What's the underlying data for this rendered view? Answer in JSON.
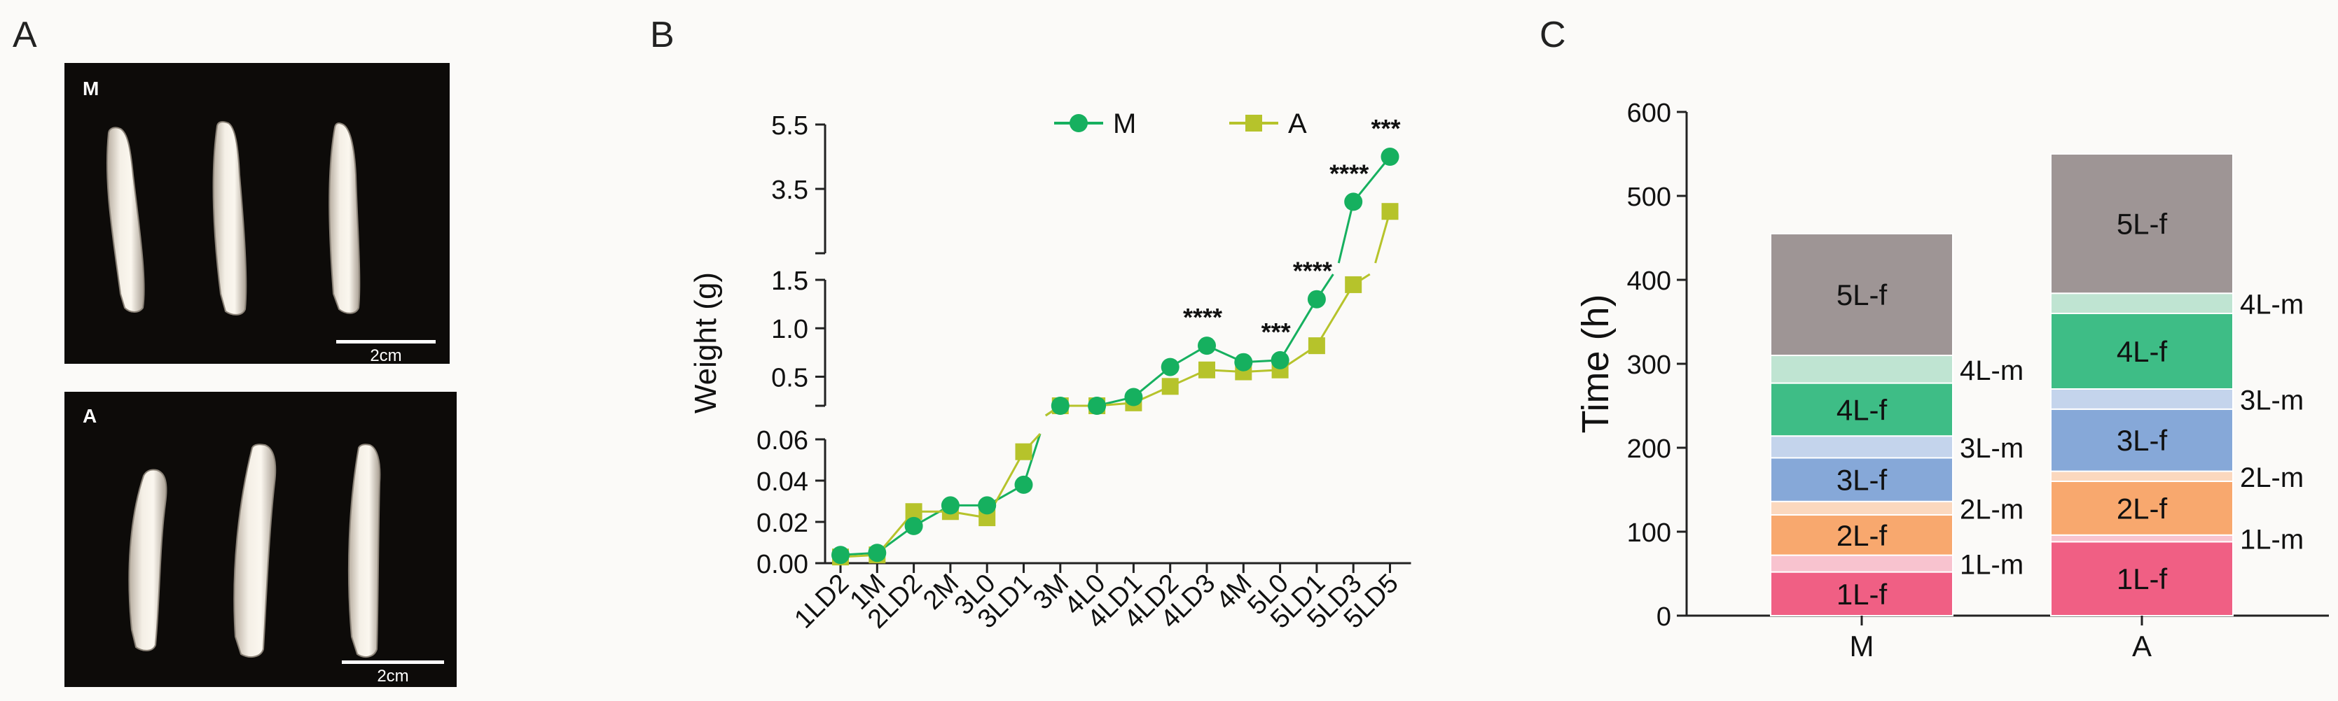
{
  "panels": {
    "a": {
      "letter": "A",
      "photos": [
        {
          "label": "M",
          "scale_text": "2cm"
        },
        {
          "label": "A",
          "scale_text": "2cm"
        }
      ]
    },
    "b": {
      "letter": "B"
    },
    "c": {
      "letter": "C"
    }
  },
  "chart_data": [
    {
      "type": "line",
      "ylabel": "Weight (g)",
      "xlabel": "",
      "categories": [
        "1LD2",
        "1M",
        "2LD2",
        "2M",
        "3L0",
        "3LD1",
        "3M",
        "4L0",
        "4LD1",
        "4LD2",
        "4LD3",
        "4M",
        "5L0",
        "5LD1",
        "5LD3",
        "5LD5"
      ],
      "series": [
        {
          "name": "M",
          "color": "#16b05f",
          "marker": "circle",
          "values": [
            0.004,
            0.005,
            0.018,
            0.028,
            0.028,
            0.038,
            0.2,
            0.2,
            0.29,
            0.6,
            0.82,
            0.65,
            0.67,
            1.3,
            3.1,
            4.5
          ]
        },
        {
          "name": "A",
          "color": "#b6c32b",
          "marker": "square",
          "values": [
            0.003,
            0.004,
            0.025,
            0.025,
            0.022,
            0.054,
            0.2,
            0.2,
            0.23,
            0.4,
            0.57,
            0.55,
            0.57,
            0.82,
            1.45,
            2.8
          ]
        }
      ],
      "broken_axis": {
        "segments": [
          {
            "ylim": [
              0,
              0.06
            ],
            "ticks": [
              "0.00",
              "0.02",
              "0.04",
              "0.06"
            ]
          },
          {
            "ylim": [
              0.2,
              1.5
            ],
            "ticks": [
              "0.5",
              "1.0",
              "1.5"
            ]
          },
          {
            "ylim": [
              1.5,
              5.5
            ],
            "ticks": [
              "1.5",
              "3.5",
              "5.5"
            ]
          }
        ]
      },
      "annotations": [
        {
          "category": "4LD3",
          "text": "****"
        },
        {
          "category": "5L0",
          "text": "***"
        },
        {
          "category": "5LD1",
          "text": "****"
        },
        {
          "category": "5LD3",
          "text": "****"
        },
        {
          "category": "5LD5",
          "text": "***"
        }
      ],
      "legend_position": "top"
    },
    {
      "type": "bar",
      "stacked": true,
      "ylabel": "Time (h)",
      "categories": [
        "M",
        "A"
      ],
      "ylim": [
        0,
        600
      ],
      "yticks": [
        "0",
        "100",
        "200",
        "300",
        "400",
        "500",
        "600"
      ],
      "stack_order": [
        "1L-f",
        "1L-m",
        "2L-f",
        "2L-m",
        "3L-f",
        "3L-m",
        "4L-f",
        "4L-m",
        "5L-f"
      ],
      "colors": {
        "1L-f": "#f05f84",
        "1L-m": "#f8c3cf",
        "2L-f": "#f8a86e",
        "2L-m": "#fbd8be",
        "3L-f": "#86a8d8",
        "3L-m": "#c4d4ec",
        "4L-f": "#3ebd86",
        "4L-m": "#bfe4d2",
        "5L-f": "#9e9595"
      },
      "series": [
        {
          "category": "M",
          "values": {
            "1L-f": 52,
            "1L-m": 20,
            "2L-f": 48,
            "2L-m": 16,
            "3L-f": 52,
            "3L-m": 26,
            "4L-f": 63,
            "4L-m": 33,
            "5L-f": 145
          }
        },
        {
          "category": "A",
          "values": {
            "1L-f": 88,
            "1L-m": 8,
            "2L-f": 64,
            "2L-m": 12,
            "3L-f": 74,
            "3L-m": 24,
            "4L-f": 90,
            "4L-m": 24,
            "5L-f": 166
          }
        }
      ],
      "segment_labels": {
        "M": [
          {
            "seg": "1L-f",
            "text": "1L-f",
            "side": "inside"
          },
          {
            "seg": "1L-m",
            "text": "1L-m",
            "side": "right"
          },
          {
            "seg": "2L-f",
            "text": "2L-f",
            "side": "inside"
          },
          {
            "seg": "2L-m",
            "text": "2L-m",
            "side": "right"
          },
          {
            "seg": "3L-f",
            "text": "3L-f",
            "side": "inside"
          },
          {
            "seg": "3L-m",
            "text": "3L-m",
            "side": "right"
          },
          {
            "seg": "4L-f",
            "text": "4L-f",
            "side": "inside"
          },
          {
            "seg": "4L-m",
            "text": "4L-m",
            "side": "right"
          },
          {
            "seg": "5L-f",
            "text": "5L-f",
            "side": "inside"
          }
        ],
        "A": [
          {
            "seg": "1L-f",
            "text": "1L-f",
            "side": "inside"
          },
          {
            "seg": "1L-m",
            "text": "1L-m",
            "side": "right"
          },
          {
            "seg": "2L-f",
            "text": "2L-f",
            "side": "inside"
          },
          {
            "seg": "2L-m",
            "text": "2L-m",
            "side": "right"
          },
          {
            "seg": "3L-f",
            "text": "3L-f",
            "side": "inside"
          },
          {
            "seg": "3L-m",
            "text": "3L-m",
            "side": "right"
          },
          {
            "seg": "4L-f",
            "text": "4L-f",
            "side": "inside"
          },
          {
            "seg": "4L-m",
            "text": "4L-m",
            "side": "right"
          },
          {
            "seg": "5L-f",
            "text": "5L-f",
            "side": "inside"
          }
        ]
      }
    }
  ]
}
